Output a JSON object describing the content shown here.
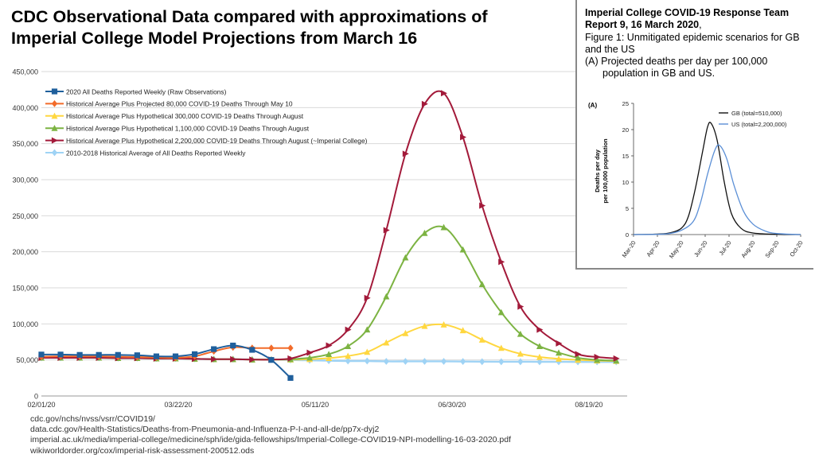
{
  "title": {
    "line1": "CDC Observational Data compared with approximations of",
    "line2": "Imperial College Model Projections from March 16"
  },
  "sources": [
    "cdc.gov/nchs/nvss/vsrr/COVID19/",
    "data.cdc.gov/Health-Statistics/Deaths-from-Pneumonia-and-Influenza-P-I-and-all-de/pp7x-dyj2",
    "imperial.ac.uk/media/imperial-college/medicine/sph/ide/gida-fellowships/Imperial-College-COVID19-NPI-modelling-16-03-2020.pdf",
    "wikiworldorder.org/cox/imperial-risk-assessment-200512.ods"
  ],
  "inset": {
    "heading_bold": "Imperial College COVID-19 Response Team Report 9, 16 March 2020",
    "heading_comma": ",",
    "figure_line": "Figure 1: Unmitigated epidemic scenarios for GB and the US",
    "panel_line_a": "(A) Projected deaths per day per 100,000",
    "panel_line_b": "population in GB and US."
  },
  "chart_data": [
    {
      "type": "line",
      "title": "CDC Observational Data compared with approximations of Imperial College Model Projections from March 16",
      "xlabel": "",
      "ylabel": "",
      "x_tick_labels": [
        "02/01/20",
        "03/22/20",
        "05/11/20",
        "06/30/20",
        "08/19/20"
      ],
      "y_tick_labels": [
        "0",
        "50,000",
        "100,000",
        "150,000",
        "200,000",
        "250,000",
        "300,000",
        "350,000",
        "400,000",
        "450,000"
      ],
      "ylim": [
        0,
        450000
      ],
      "grid": "horizontal",
      "legend": "top-left",
      "colors": {
        "raw": "#1f5f9c",
        "projected80k": "#f26b2a",
        "hyp300k": "#ffd740",
        "hyp1100k": "#7cb342",
        "hyp2200k": "#a31a3a",
        "historical": "#9fd3f5"
      },
      "series": [
        {
          "key": "raw",
          "name": "2020 All Deaths Reported Weekly (Raw Observations)",
          "marker": "square",
          "color": "#1f5f9c",
          "x": [
            "2020-02-01",
            "2020-02-08",
            "2020-02-15",
            "2020-02-22",
            "2020-02-29",
            "2020-03-07",
            "2020-03-14",
            "2020-03-21",
            "2020-03-28",
            "2020-04-04",
            "2020-04-11",
            "2020-04-18",
            "2020-04-25",
            "2020-05-02"
          ],
          "y": [
            57500,
            57500,
            57000,
            57000,
            57000,
            56500,
            55000,
            55000,
            58000,
            65000,
            70000,
            64000,
            50000,
            25000
          ]
        },
        {
          "key": "projected80k",
          "name": "Historical Average Plus Projected 80,000 COVID-19 Deaths Through May 10",
          "marker": "diamond",
          "color": "#f26b2a",
          "x": [
            "2020-02-01",
            "2020-02-08",
            "2020-02-15",
            "2020-02-22",
            "2020-02-29",
            "2020-03-07",
            "2020-03-14",
            "2020-03-21",
            "2020-03-28",
            "2020-04-04",
            "2020-04-11",
            "2020-04-18",
            "2020-04-25",
            "2020-05-02"
          ],
          "y": [
            54500,
            55000,
            55000,
            55000,
            54500,
            54000,
            53500,
            53000,
            55000,
            62000,
            67500,
            66500,
            66500,
            66500
          ]
        },
        {
          "key": "hyp300k",
          "name": "Historical Average Plus Hypothetical 300,000 COVID-19 Deaths Through August",
          "marker": "triangle-up",
          "color": "#ffd740",
          "x": [
            "2020-02-01",
            "2020-02-08",
            "2020-02-15",
            "2020-02-22",
            "2020-02-29",
            "2020-03-07",
            "2020-03-14",
            "2020-03-21",
            "2020-03-28",
            "2020-04-04",
            "2020-04-11",
            "2020-04-18",
            "2020-04-25",
            "2020-05-02",
            "2020-05-09",
            "2020-05-16",
            "2020-05-23",
            "2020-05-30",
            "2020-06-06",
            "2020-06-13",
            "2020-06-20",
            "2020-06-27",
            "2020-07-04",
            "2020-07-11",
            "2020-07-18",
            "2020-07-25",
            "2020-08-01",
            "2020-08-08",
            "2020-08-15",
            "2020-08-22",
            "2020-08-29"
          ],
          "y": [
            53000,
            53000,
            53000,
            53000,
            52500,
            52500,
            52000,
            52000,
            51500,
            51000,
            51000,
            50500,
            50500,
            50500,
            51000,
            52500,
            55500,
            61000,
            74000,
            87000,
            97000,
            99000,
            91000,
            78000,
            66500,
            58500,
            54000,
            51500,
            50000,
            49000,
            48500
          ]
        },
        {
          "key": "hyp1100k",
          "name": "Historical Average Plus Hypothetical 1,100,000 COVID-19 Deaths Through August",
          "marker": "triangle-up",
          "color": "#7cb342",
          "x": [
            "2020-02-01",
            "2020-02-08",
            "2020-02-15",
            "2020-02-22",
            "2020-02-29",
            "2020-03-07",
            "2020-03-14",
            "2020-03-21",
            "2020-03-28",
            "2020-04-04",
            "2020-04-11",
            "2020-04-18",
            "2020-04-25",
            "2020-05-02",
            "2020-05-09",
            "2020-05-16",
            "2020-05-23",
            "2020-05-30",
            "2020-06-06",
            "2020-06-13",
            "2020-06-20",
            "2020-06-27",
            "2020-07-04",
            "2020-07-11",
            "2020-07-18",
            "2020-07-25",
            "2020-08-01",
            "2020-08-08",
            "2020-08-15",
            "2020-08-22",
            "2020-08-29"
          ],
          "y": [
            53000,
            53000,
            53000,
            53000,
            52500,
            52500,
            52000,
            52000,
            51500,
            51000,
            51000,
            50500,
            50500,
            51000,
            53000,
            58000,
            69000,
            92000,
            138000,
            192000,
            226000,
            234000,
            203000,
            155000,
            116000,
            86000,
            69000,
            60000,
            53000,
            50000,
            49000
          ]
        },
        {
          "key": "hyp2200k",
          "name": "Historical Average Plus Hypothetical 2,200,000 COVID-19 Deaths Through August (~Imperial College)",
          "marker": "triangle-right",
          "color": "#a31a3a",
          "x": [
            "2020-02-01",
            "2020-02-08",
            "2020-02-15",
            "2020-02-22",
            "2020-02-29",
            "2020-03-07",
            "2020-03-14",
            "2020-03-21",
            "2020-03-28",
            "2020-04-04",
            "2020-04-11",
            "2020-04-18",
            "2020-04-25",
            "2020-05-02",
            "2020-05-09",
            "2020-05-16",
            "2020-05-23",
            "2020-05-30",
            "2020-06-06",
            "2020-06-13",
            "2020-06-20",
            "2020-06-27",
            "2020-07-04",
            "2020-07-11",
            "2020-07-18",
            "2020-07-25",
            "2020-08-01",
            "2020-08-08",
            "2020-08-15",
            "2020-08-22",
            "2020-08-29"
          ],
          "y": [
            53000,
            53000,
            53000,
            53000,
            52500,
            52500,
            52000,
            52000,
            51500,
            51000,
            51000,
            50500,
            50500,
            52000,
            60000,
            70000,
            92000,
            136000,
            230000,
            336000,
            405000,
            420000,
            359000,
            264000,
            186000,
            124000,
            92000,
            73000,
            58000,
            54000,
            52000
          ]
        },
        {
          "key": "historical",
          "name": "2010-2018 Historical Average of All Deaths Reported Weekly",
          "marker": "diamond",
          "color": "#9fd3f5",
          "x": [
            "2020-02-01",
            "2020-02-08",
            "2020-02-15",
            "2020-02-22",
            "2020-02-29",
            "2020-03-07",
            "2020-03-14",
            "2020-03-21",
            "2020-03-28",
            "2020-04-04",
            "2020-04-11",
            "2020-04-18",
            "2020-04-25",
            "2020-05-02",
            "2020-05-09",
            "2020-05-16",
            "2020-05-23",
            "2020-05-30",
            "2020-06-06",
            "2020-06-13",
            "2020-06-20",
            "2020-06-27",
            "2020-07-04",
            "2020-07-11",
            "2020-07-18",
            "2020-07-25",
            "2020-08-01",
            "2020-08-08",
            "2020-08-15",
            "2020-08-22",
            "2020-08-29"
          ],
          "y": [
            53000,
            53000,
            53000,
            53000,
            52500,
            52500,
            52000,
            52000,
            51500,
            51000,
            51000,
            50500,
            50500,
            50000,
            49500,
            49000,
            48500,
            48500,
            48000,
            48000,
            48000,
            48000,
            47800,
            47600,
            47500,
            47500,
            47400,
            47400,
            47300,
            47300,
            47300
          ]
        }
      ]
    },
    {
      "type": "line",
      "title": "",
      "panel_label": "(A)",
      "xlabel": "",
      "ylabel_line1": "Deaths per day",
      "ylabel_line2": "per 100,000 population",
      "x_tick_labels": [
        "Mar-20",
        "Apr-20",
        "May-20",
        "Jun-20",
        "Jul-20",
        "Aug-20",
        "Sep-20",
        "Oct-20"
      ],
      "y_tick_labels": [
        "0",
        "5",
        "10",
        "15",
        "20",
        "25"
      ],
      "ylim": [
        0,
        25
      ],
      "grid": "none",
      "legend": "top-right",
      "series": [
        {
          "key": "gb",
          "name": "GB (total=510,000)",
          "color": "#111111",
          "x": [
            0,
            1,
            1.5,
            2,
            2.3,
            2.6,
            2.9,
            3.1,
            3.25,
            3.5,
            3.8,
            4.1,
            4.5,
            5,
            6,
            7
          ],
          "y": [
            0,
            0.1,
            0.3,
            1.2,
            3.5,
            9,
            16,
            20.5,
            21.2,
            18,
            10,
            4,
            1.2,
            0.3,
            0.05,
            0
          ]
        },
        {
          "key": "us",
          "name": "US (total=2,200,000)",
          "color": "#5b8fd6",
          "x": [
            0,
            1,
            1.5,
            2,
            2.5,
            2.8,
            3.1,
            3.4,
            3.6,
            3.9,
            4.2,
            4.6,
            5,
            5.5,
            6,
            7
          ],
          "y": [
            0,
            0.05,
            0.2,
            0.8,
            2.5,
            6,
            11.5,
            16,
            17,
            14.5,
            9.5,
            4.5,
            2,
            0.7,
            0.2,
            0
          ]
        }
      ]
    }
  ]
}
